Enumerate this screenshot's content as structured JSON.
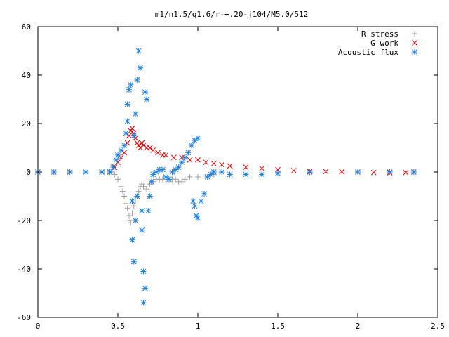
{
  "chart_data": {
    "type": "scatter",
    "title": "m1/n1.5/q1.6/r-+.20-j104/M5.0/512",
    "xlabel": "",
    "ylabel": "",
    "xlim": [
      0,
      2.5
    ],
    "ylim": [
      -60,
      60
    ],
    "x_ticks": [
      0,
      0.5,
      1,
      1.5,
      2,
      2.5
    ],
    "x_tick_labels": [
      "0",
      "0.5",
      "1",
      "1.5",
      "2",
      "2.5"
    ],
    "y_ticks": [
      -60,
      -40,
      -20,
      0,
      20,
      40,
      60
    ],
    "y_tick_labels": [
      "-60",
      "-40",
      "-20",
      "0",
      "20",
      "40",
      "60"
    ],
    "grid": false,
    "legend_position": "top-right",
    "series": [
      {
        "name": "R stress",
        "marker": "plus",
        "color": "#a0a0a0",
        "points": [
          [
            0.46,
            0
          ],
          [
            0.48,
            -1
          ],
          [
            0.5,
            -3
          ],
          [
            0.52,
            -6
          ],
          [
            0.53,
            -8
          ],
          [
            0.54,
            -10
          ],
          [
            0.55,
            -13
          ],
          [
            0.56,
            -15
          ],
          [
            0.57,
            -18
          ],
          [
            0.575,
            -20
          ],
          [
            0.58,
            -21
          ],
          [
            0.59,
            -17
          ],
          [
            0.6,
            -14
          ],
          [
            0.61,
            -12
          ],
          [
            0.62,
            -10
          ],
          [
            0.63,
            -8
          ],
          [
            0.64,
            -6
          ],
          [
            0.65,
            -5
          ],
          [
            0.66,
            -6
          ],
          [
            0.68,
            -7
          ],
          [
            0.7,
            -5
          ],
          [
            0.72,
            -4
          ],
          [
            0.74,
            -3
          ],
          [
            0.76,
            -3
          ],
          [
            0.78,
            -3
          ],
          [
            0.8,
            -3
          ],
          [
            0.82,
            -3
          ],
          [
            0.84,
            -3
          ],
          [
            0.86,
            -3
          ],
          [
            0.88,
            -4
          ],
          [
            0.9,
            -4
          ],
          [
            0.92,
            -3
          ],
          [
            0.95,
            -2
          ],
          [
            1,
            -2
          ],
          [
            1.05,
            -1.5
          ],
          [
            1.1,
            -1
          ],
          [
            1.2,
            -1
          ],
          [
            1.3,
            -0.6
          ],
          [
            1.4,
            -0.4
          ],
          [
            1.5,
            -0.2
          ],
          [
            1.7,
            -0.1
          ],
          [
            2,
            0
          ],
          [
            2.3,
            0
          ]
        ]
      },
      {
        "name": "G work",
        "marker": "cross",
        "color": "#e00000",
        "points": [
          [
            0,
            0
          ],
          [
            0.2,
            0
          ],
          [
            0.4,
            0
          ],
          [
            0.45,
            0
          ],
          [
            0.48,
            2
          ],
          [
            0.5,
            4
          ],
          [
            0.52,
            6
          ],
          [
            0.54,
            8
          ],
          [
            0.56,
            12
          ],
          [
            0.57,
            15
          ],
          [
            0.58,
            17
          ],
          [
            0.59,
            18
          ],
          [
            0.6,
            16
          ],
          [
            0.61,
            14
          ],
          [
            0.62,
            12
          ],
          [
            0.63,
            11
          ],
          [
            0.64,
            10
          ],
          [
            0.65,
            12
          ],
          [
            0.66,
            11
          ],
          [
            0.68,
            10
          ],
          [
            0.7,
            10
          ],
          [
            0.72,
            9
          ],
          [
            0.75,
            8
          ],
          [
            0.78,
            7
          ],
          [
            0.8,
            7
          ],
          [
            0.85,
            6
          ],
          [
            0.9,
            6
          ],
          [
            0.95,
            5
          ],
          [
            1,
            5
          ],
          [
            1.05,
            4
          ],
          [
            1.1,
            3.5
          ],
          [
            1.15,
            3
          ],
          [
            1.2,
            2.5
          ],
          [
            1.3,
            2
          ],
          [
            1.4,
            1.5
          ],
          [
            1.5,
            1
          ],
          [
            1.6,
            0.6
          ],
          [
            1.7,
            0.3
          ],
          [
            1.8,
            0.2
          ],
          [
            1.9,
            0.1
          ],
          [
            2,
            0
          ],
          [
            2.1,
            -0.2
          ],
          [
            2.2,
            -0.3
          ],
          [
            2.3,
            -0.2
          ],
          [
            2.35,
            0
          ]
        ]
      },
      {
        "name": "Acoustic flux",
        "marker": "star",
        "color": "#2080e0",
        "points": [
          [
            0,
            0
          ],
          [
            0.1,
            0
          ],
          [
            0.2,
            0
          ],
          [
            0.3,
            0
          ],
          [
            0.4,
            0
          ],
          [
            0.45,
            0
          ],
          [
            0.47,
            2
          ],
          [
            0.49,
            5
          ],
          [
            0.5,
            7
          ],
          [
            0.52,
            9
          ],
          [
            0.54,
            11
          ],
          [
            0.55,
            16
          ],
          [
            0.56,
            21
          ],
          [
            0.56,
            28
          ],
          [
            0.57,
            34
          ],
          [
            0.58,
            36
          ],
          [
            0.59,
            -12
          ],
          [
            0.59,
            -28
          ],
          [
            0.6,
            -37
          ],
          [
            0.61,
            -20
          ],
          [
            0.62,
            -10
          ],
          [
            0.6,
            15
          ],
          [
            0.61,
            24
          ],
          [
            0.62,
            38
          ],
          [
            0.63,
            50
          ],
          [
            0.64,
            43
          ],
          [
            0.65,
            -16
          ],
          [
            0.65,
            -24
          ],
          [
            0.66,
            -41
          ],
          [
            0.66,
            -54
          ],
          [
            0.67,
            -48
          ],
          [
            0.67,
            33
          ],
          [
            0.68,
            30
          ],
          [
            0.69,
            -16
          ],
          [
            0.7,
            -10
          ],
          [
            0.71,
            -4
          ],
          [
            0.72,
            -1
          ],
          [
            0.74,
            0
          ],
          [
            0.76,
            1
          ],
          [
            0.78,
            1
          ],
          [
            0.8,
            -2
          ],
          [
            0.82,
            -3
          ],
          [
            0.84,
            0
          ],
          [
            0.86,
            1
          ],
          [
            0.88,
            2
          ],
          [
            0.9,
            4
          ],
          [
            0.92,
            6
          ],
          [
            0.94,
            8
          ],
          [
            0.96,
            11
          ],
          [
            0.98,
            13
          ],
          [
            1,
            14
          ],
          [
            0.97,
            -12
          ],
          [
            0.98,
            -14
          ],
          [
            0.99,
            -18
          ],
          [
            1,
            -19
          ],
          [
            1.02,
            -12
          ],
          [
            1.04,
            -9
          ],
          [
            1.06,
            -2
          ],
          [
            1.08,
            -1
          ],
          [
            1.1,
            0
          ],
          [
            1.15,
            0
          ],
          [
            1.2,
            -1
          ],
          [
            1.3,
            -1
          ],
          [
            1.4,
            -1
          ],
          [
            1.5,
            -0.5
          ],
          [
            1.7,
            0
          ],
          [
            2,
            0
          ],
          [
            2.2,
            0
          ],
          [
            2.35,
            0
          ]
        ]
      }
    ]
  }
}
